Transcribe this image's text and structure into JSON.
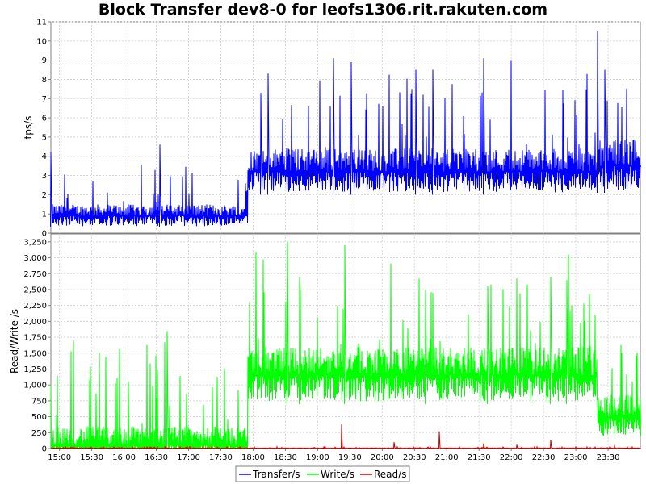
{
  "title": "Block Transfer dev8-0 for leofs1306.rit.rakuten.com",
  "chart_data": [
    {
      "type": "line",
      "ylabel": "tps/s",
      "ylim": [
        0,
        11
      ],
      "yticks": [
        "0",
        "1",
        "2",
        "3",
        "4",
        "5",
        "6",
        "7",
        "8",
        "9",
        "10",
        "11"
      ],
      "xlim": [
        "14:52",
        "24:00"
      ],
      "grid": true,
      "series": [
        {
          "name": "Transfer/s",
          "color": "#0000ff",
          "segments": [
            {
              "from": "14:52",
              "to": "17:55",
              "base": 0.9,
              "spread": 0.6,
              "spike_max": 3.5
            },
            {
              "from": "17:55",
              "to": "23:20",
              "base": 3.2,
              "spread": 1.2,
              "spike_max": 8.0
            },
            {
              "from": "23:20",
              "to": "24:00",
              "base": 3.5,
              "spread": 1.4,
              "spike_max": 8.0
            }
          ],
          "peaks": [
            {
              "t": "14:52",
              "v": 4.2
            },
            {
              "t": "16:33",
              "v": 4.6
            },
            {
              "t": "18:07",
              "v": 7.3
            },
            {
              "t": "18:14",
              "v": 8.3
            },
            {
              "t": "19:15",
              "v": 9.1
            },
            {
              "t": "19:31",
              "v": 8.9
            },
            {
              "t": "20:31",
              "v": 8.5
            },
            {
              "t": "20:47",
              "v": 8.5
            },
            {
              "t": "21:34",
              "v": 9.1
            },
            {
              "t": "23:20",
              "v": 10.5
            },
            {
              "t": "23:27",
              "v": 8.5
            }
          ]
        }
      ]
    },
    {
      "type": "line",
      "ylabel": "Read/Write /s",
      "ylim": [
        0,
        3375
      ],
      "yticks": [
        "0",
        "250",
        "500",
        "750",
        "1,000",
        "1,250",
        "1,500",
        "1,750",
        "2,000",
        "2,250",
        "2,500",
        "2,750",
        "3,000",
        "3,250"
      ],
      "xticks": [
        "15:00",
        "15:30",
        "16:00",
        "16:30",
        "17:00",
        "17:30",
        "18:00",
        "18:30",
        "19:00",
        "19:30",
        "20:00",
        "20:30",
        "21:00",
        "21:30",
        "22:00",
        "22:30",
        "23:00",
        "23:30"
      ],
      "xlim": [
        "14:52",
        "24:00"
      ],
      "grid": true,
      "series": [
        {
          "name": "Write/s",
          "color": "#00ff00",
          "segments": [
            {
              "from": "14:52",
              "to": "17:55",
              "base": 50,
              "spread": 300,
              "spike_max": 1500
            },
            {
              "from": "17:55",
              "to": "23:20",
              "base": 1150,
              "spread": 450,
              "spike_max": 2800
            },
            {
              "from": "23:20",
              "to": "24:00",
              "base": 500,
              "spread": 350,
              "spike_max": 1500
            }
          ],
          "peaks": [
            {
              "t": "16:40",
              "v": 1850
            },
            {
              "t": "18:32",
              "v": 3250
            },
            {
              "t": "19:25",
              "v": 3200
            },
            {
              "t": "18:43",
              "v": 2700
            },
            {
              "t": "20:40",
              "v": 2500
            },
            {
              "t": "21:38",
              "v": 2550
            },
            {
              "t": "22:37",
              "v": 2700
            },
            {
              "t": "22:52",
              "v": 2650
            }
          ]
        },
        {
          "name": "Read/s",
          "color": "#cc0000",
          "segments": [
            {
              "from": "14:52",
              "to": "24:00",
              "base": 5,
              "spread": 5,
              "spike_max": 30
            }
          ],
          "peaks": [
            {
              "t": "19:22",
              "v": 380
            },
            {
              "t": "20:11",
              "v": 100
            },
            {
              "t": "20:53",
              "v": 270
            },
            {
              "t": "21:34",
              "v": 80
            },
            {
              "t": "22:05",
              "v": 60
            },
            {
              "t": "22:37",
              "v": 140
            },
            {
              "t": "23:36",
              "v": 40
            }
          ]
        }
      ]
    }
  ],
  "legend": [
    "Transfer/s",
    "Write/s",
    "Read/s"
  ]
}
